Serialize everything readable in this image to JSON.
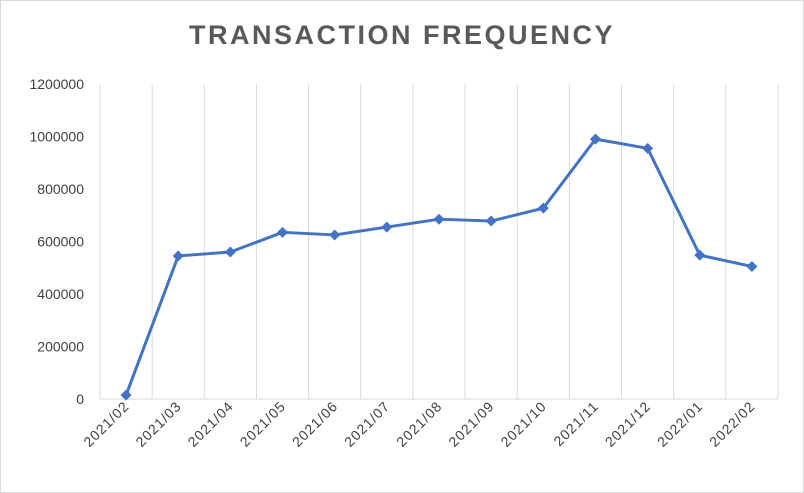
{
  "chart_data": {
    "type": "line",
    "title": "TRANSACTION  FREQUENCY",
    "categories": [
      "2021/02",
      "2021/03",
      "2021/04",
      "2021/05",
      "2021/06",
      "2021/07",
      "2021/08",
      "2021/09",
      "2021/10",
      "2021/11",
      "2021/12",
      "2022/01",
      "2022/02"
    ],
    "series": [
      {
        "values": [
          15000,
          545000,
          560000,
          635000,
          625000,
          655000,
          685000,
          678000,
          727000,
          990000,
          955000,
          548000,
          505000
        ]
      }
    ],
    "ylim": [
      0,
      1200000
    ],
    "yticks": [
      0,
      200000,
      400000,
      600000,
      800000,
      1000000,
      1200000
    ],
    "ytick_labels": [
      "0",
      "200000",
      "400000",
      "600000",
      "800000",
      "1000000",
      "1200000"
    ],
    "grid": "vertical",
    "legend": "none",
    "colors": {
      "line": "#4472c4",
      "grid": "#d9d9d9",
      "text": "#404040",
      "title": "#595959"
    }
  }
}
